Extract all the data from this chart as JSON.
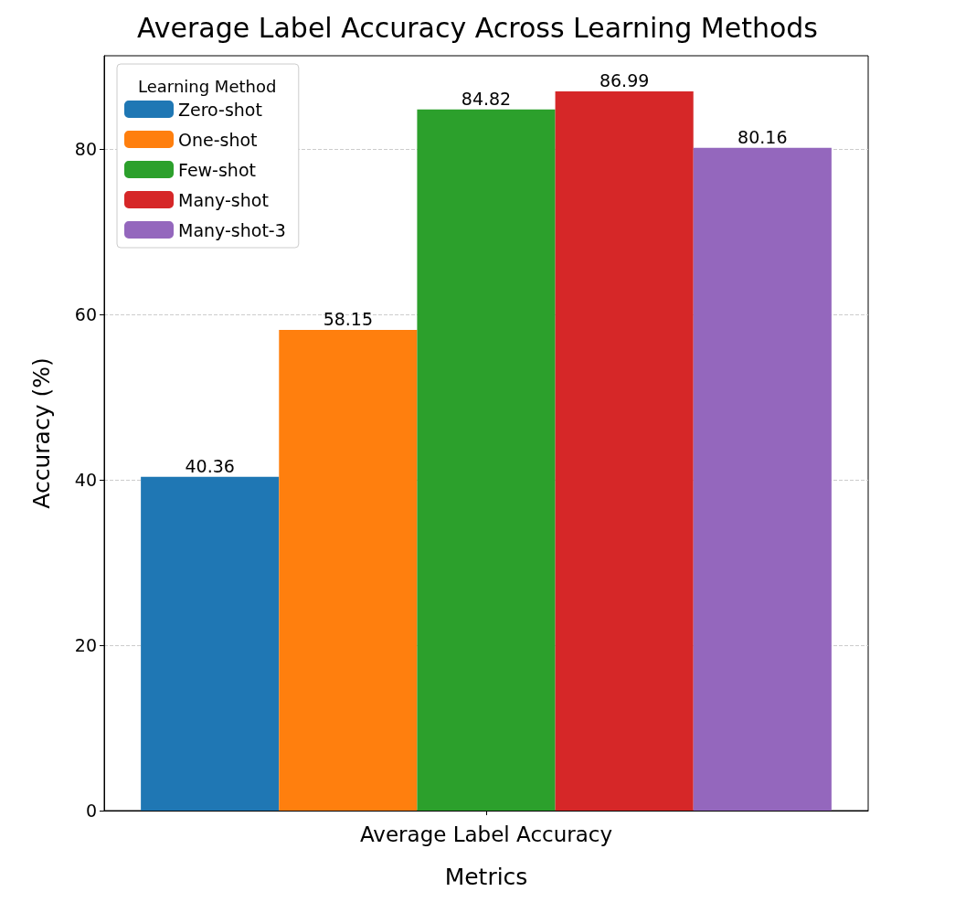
{
  "chart_data": {
    "type": "bar",
    "title": "Average Label Accuracy Across Learning Methods",
    "xlabel": "Metrics",
    "ylabel": "Accuracy (%)",
    "legend_title": "Learning Method",
    "categories": [
      "Average Label Accuracy"
    ],
    "series": [
      {
        "name": "Zero-shot",
        "color": "#1f77b4",
        "values": [
          40.36
        ]
      },
      {
        "name": "One-shot",
        "color": "#ff7f0e",
        "values": [
          58.15
        ]
      },
      {
        "name": "Few-shot",
        "color": "#2ca02c",
        "values": [
          84.82
        ]
      },
      {
        "name": "Many-shot",
        "color": "#d62728",
        "values": [
          86.99
        ]
      },
      {
        "name": "Many-shot-3",
        "color": "#9467bd",
        "values": [
          80.16
        ]
      }
    ],
    "ylim": [
      0,
      91.3
    ],
    "yticks": [
      0,
      20,
      40,
      60,
      80
    ],
    "grid": "y",
    "legend": "top left",
    "data_labels": true
  }
}
